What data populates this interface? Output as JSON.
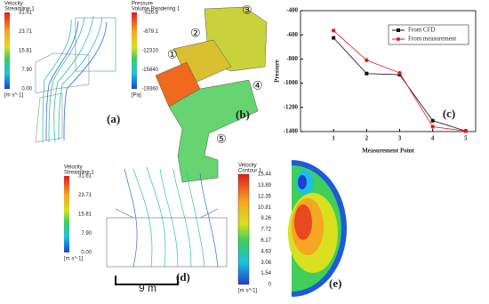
{
  "chart_data": {
    "type": "line",
    "x_label": "Measurement Point",
    "y_label": "Pressure",
    "panel_label": "(c)",
    "x": [
      1,
      2,
      3,
      4,
      5
    ],
    "xlim": [
      0,
      5.3
    ],
    "xticks": [
      1,
      2,
      3,
      4,
      5
    ],
    "ylim": [
      -1400,
      -400
    ],
    "yticks": [
      -400,
      -600,
      -800,
      -1000,
      -1200,
      -1400
    ],
    "legend": "upper right",
    "series": [
      {
        "name": "From CFD",
        "color": "#111111",
        "marker": "square",
        "values": [
          -625,
          -920,
          -930,
          -1310,
          -1395
        ]
      },
      {
        "name": "From measurement",
        "color": "#e41a1c",
        "marker": "circle",
        "values": [
          -565,
          -810,
          -915,
          -1360,
          -1395
        ]
      }
    ]
  },
  "panels": {
    "a": {
      "label": "(a)",
      "colorbar": {
        "title": "Velocity",
        "subtitle": "Streamline 1",
        "ticks": [
          "31.61",
          "23.71",
          "15.81",
          "7.90",
          "0.00"
        ],
        "unit": "[m s^-1]"
      }
    },
    "b": {
      "label": "(b)",
      "colorbar": {
        "title": "Pressure",
        "subtitle": "Volume Rendering 1",
        "ticks": [
          "-526.8",
          "-879.1",
          "-12310",
          "-15840",
          "-19360"
        ],
        "unit": "[Pa]"
      },
      "markers": [
        "①",
        "②",
        "③",
        "④",
        "⑤"
      ]
    },
    "d": {
      "label": "(d)",
      "scale_bar": "9 m",
      "colorbar": {
        "title": "Velocity",
        "subtitle": "Streamline 1",
        "ticks": [
          "31.61",
          "23.71",
          "15.81",
          "7.90",
          "0.00"
        ],
        "unit": "[m s^-1]"
      }
    },
    "e": {
      "label": "(e)",
      "colorbar": {
        "title": "Velocity",
        "subtitle": "Contour 1",
        "ticks": [
          "15.44",
          "13.89",
          "12.35",
          "10.81",
          "9.26",
          "7.72",
          "6.17",
          "4.63",
          "3.08",
          "1.54",
          "0"
        ],
        "unit": "[m s^-1]"
      }
    }
  }
}
